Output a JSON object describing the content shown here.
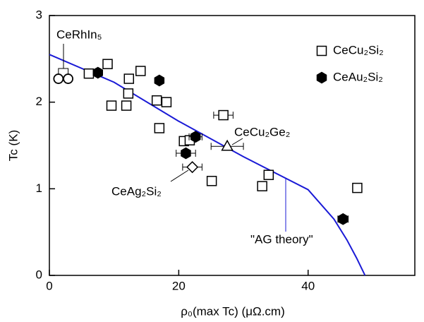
{
  "chart_data": {
    "type": "scatter",
    "x_label": "ρ₀(max Tc) (μΩ.cm)",
    "y_label": "Tc (K)",
    "xlim": [
      0,
      56.5
    ],
    "ylim": [
      0,
      3
    ],
    "xticks": [
      0,
      20,
      40
    ],
    "yticks": [
      0,
      1,
      2,
      3
    ],
    "series": [
      {
        "name": "CeCu₂Si₂",
        "marker": "square",
        "color": "#000000",
        "x": [
          6.1,
          9.0,
          9.6,
          12.3,
          14.1,
          11.9,
          12.2,
          16.6,
          18.1,
          17.0,
          20.8,
          21.7,
          26.9,
          25.1,
          32.9,
          33.9,
          47.6
        ],
        "values": [
          2.33,
          2.44,
          1.96,
          2.27,
          2.36,
          1.96,
          2.1,
          2.02,
          2.0,
          1.7,
          1.55,
          1.56,
          1.85,
          1.09,
          1.03,
          1.16,
          1.01
        ],
        "xerr": [
          null,
          null,
          null,
          null,
          null,
          null,
          null,
          null,
          null,
          null,
          null,
          null,
          1.5,
          null,
          null,
          null,
          null
        ]
      },
      {
        "name": "CeAu₂Si₂",
        "marker": "hexagon",
        "color": "#000000",
        "x": [
          7.5,
          17.0,
          22.6,
          21.1,
          45.4
        ],
        "values": [
          2.34,
          2.25,
          1.6,
          1.41,
          0.65
        ],
        "xerr": [
          null,
          null,
          1.0,
          1.5,
          0.8
        ]
      },
      {
        "name": "CeRhIn₅",
        "marker": "circle",
        "color": "#000000",
        "x": [
          1.4,
          2.9
        ],
        "values": [
          2.27,
          2.27
        ],
        "xerr": [
          null,
          null
        ]
      },
      {
        "name": "CeCu₂Ge₂",
        "marker": "triangle",
        "color": "#000000",
        "x": [
          27.5
        ],
        "values": [
          1.49
        ],
        "xerr": [
          2.5
        ]
      },
      {
        "name": "CeAg₂Si₂",
        "marker": "diamond",
        "color": "#000000",
        "x": [
          22.1
        ],
        "values": [
          1.25
        ],
        "xerr": [
          1.5
        ]
      }
    ],
    "curve": {
      "name": "\"AG theory\"",
      "color": "#1a1ad6",
      "x": [
        0,
        10,
        20,
        30,
        40,
        44,
        46,
        47.5,
        48.8
      ],
      "values": [
        2.55,
        2.23,
        1.78,
        1.37,
        0.99,
        0.65,
        0.41,
        0.2,
        0
      ]
    }
  }
}
